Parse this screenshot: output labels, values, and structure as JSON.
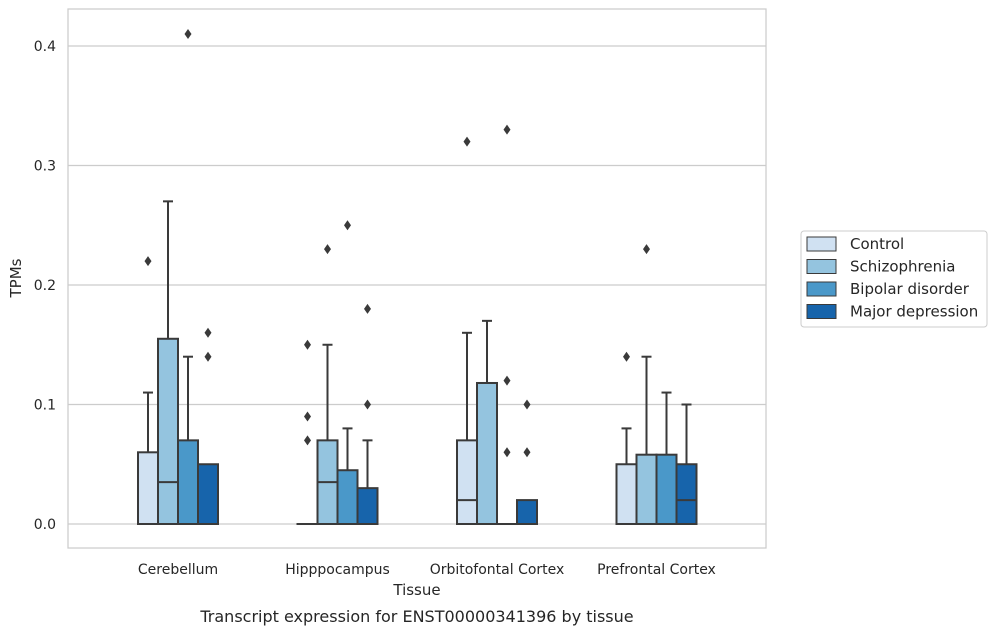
{
  "chart_data": {
    "type": "boxplot",
    "caption": "Transcript expression for ENST00000341396 by tissue",
    "xlabel": "Tissue",
    "ylabel": "TPMs",
    "ylim": [
      -0.02,
      0.43
    ],
    "yticks": [
      0.0,
      0.1,
      0.2,
      0.3,
      0.4
    ],
    "ytick_labels": [
      "0.0",
      "0.1",
      "0.2",
      "0.3",
      "0.4"
    ],
    "grid": "horizontal",
    "legend_position": "right",
    "categories": [
      "Cerebellum",
      "Hipppocampus",
      "Orbitofontal Cortex",
      "Prefrontal Cortex"
    ],
    "series": [
      {
        "name": "Control",
        "color": "#d0e1f2",
        "boxes": [
          {
            "q1": 0.0,
            "median": 0.0,
            "q3": 0.06,
            "whisker_low": 0.0,
            "whisker_high": 0.11,
            "outliers": [
              0.22
            ]
          },
          {
            "q1": 0.0,
            "median": 0.0,
            "q3": 0.0,
            "whisker_low": 0.0,
            "whisker_high": 0.0,
            "outliers": [
              0.07,
              0.09,
              0.15
            ]
          },
          {
            "q1": 0.0,
            "median": 0.02,
            "q3": 0.07,
            "whisker_low": 0.0,
            "whisker_high": 0.16,
            "outliers": [
              0.32
            ]
          },
          {
            "q1": 0.0,
            "median": 0.0,
            "q3": 0.05,
            "whisker_low": 0.0,
            "whisker_high": 0.08,
            "outliers": [
              0.14
            ]
          }
        ]
      },
      {
        "name": "Schizophrenia",
        "color": "#94c4df",
        "boxes": [
          {
            "q1": 0.0,
            "median": 0.035,
            "q3": 0.155,
            "whisker_low": 0.0,
            "whisker_high": 0.27,
            "outliers": []
          },
          {
            "q1": 0.0,
            "median": 0.035,
            "q3": 0.07,
            "whisker_low": 0.0,
            "whisker_high": 0.15,
            "outliers": [
              0.23
            ]
          },
          {
            "q1": 0.0,
            "median": 0.0,
            "q3": 0.118,
            "whisker_low": 0.0,
            "whisker_high": 0.17,
            "outliers": []
          },
          {
            "q1": 0.0,
            "median": 0.0,
            "q3": 0.058,
            "whisker_low": 0.0,
            "whisker_high": 0.14,
            "outliers": [
              0.23
            ]
          }
        ]
      },
      {
        "name": "Bipolar disorder",
        "color": "#4a98c9",
        "boxes": [
          {
            "q1": 0.0,
            "median": 0.0,
            "q3": 0.07,
            "whisker_low": 0.0,
            "whisker_high": 0.14,
            "outliers": [
              0.41
            ]
          },
          {
            "q1": 0.0,
            "median": 0.0,
            "q3": 0.045,
            "whisker_low": 0.0,
            "whisker_high": 0.08,
            "outliers": [
              0.25
            ]
          },
          {
            "q1": 0.0,
            "median": 0.0,
            "q3": 0.0,
            "whisker_low": 0.0,
            "whisker_high": 0.0,
            "outliers": [
              0.06,
              0.12,
              0.33
            ]
          },
          {
            "q1": 0.0,
            "median": 0.0,
            "q3": 0.058,
            "whisker_low": 0.0,
            "whisker_high": 0.11,
            "outliers": []
          }
        ]
      },
      {
        "name": "Major depression",
        "color": "#1764ab",
        "boxes": [
          {
            "q1": 0.0,
            "median": 0.0,
            "q3": 0.05,
            "whisker_low": 0.0,
            "whisker_high": 0.05,
            "outliers": [
              0.14,
              0.16
            ]
          },
          {
            "q1": 0.0,
            "median": 0.0,
            "q3": 0.03,
            "whisker_low": 0.0,
            "whisker_high": 0.07,
            "outliers": [
              0.1,
              0.18
            ]
          },
          {
            "q1": 0.0,
            "median": 0.0,
            "q3": 0.02,
            "whisker_low": 0.0,
            "whisker_high": 0.02,
            "outliers": [
              0.06,
              0.1
            ]
          },
          {
            "q1": 0.0,
            "median": 0.02,
            "q3": 0.05,
            "whisker_low": 0.0,
            "whisker_high": 0.1,
            "outliers": []
          }
        ]
      }
    ]
  }
}
